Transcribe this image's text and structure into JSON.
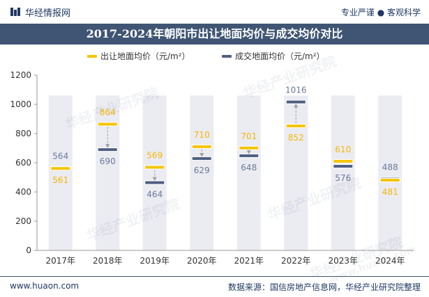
{
  "header": {
    "brand_name": "华经情报网",
    "slogan": "专业严谨 ● 客观科学"
  },
  "watermark": "华经产业研究院",
  "watermark_url": "www.huaon.com",
  "footer": {
    "website": "www.huaon.com",
    "source": "数据来源：国信房地产信息网，华经产业研究院整理"
  },
  "colors": {
    "listing": "#f5c400",
    "transaction": "#4f5f82",
    "title_bg": "#3f5573",
    "bar_bg": "#ebebf2",
    "listing_label": "#f5b800",
    "transaction_label": "#6a7a9c"
  },
  "chart_data": {
    "type": "range",
    "title": "2017-2024年朝阳市出让地面均价与成交均价对比",
    "categories": [
      "2017年",
      "2018年",
      "2019年",
      "2020年",
      "2021年",
      "2022年",
      "2023年",
      "2024年"
    ],
    "series": [
      {
        "name": "出让地面均价（元/m²）",
        "values": [
          561,
          864,
          569,
          710,
          701,
          852,
          610,
          481
        ]
      },
      {
        "name": "成交地面均价（元/m²）",
        "values": [
          564,
          690,
          464,
          629,
          648,
          1016,
          576,
          488
        ]
      }
    ],
    "yticks": [
      0,
      200,
      400,
      600,
      800,
      1000,
      1200
    ],
    "ylim": [
      0,
      1200
    ],
    "background_bar_max": 1060
  }
}
